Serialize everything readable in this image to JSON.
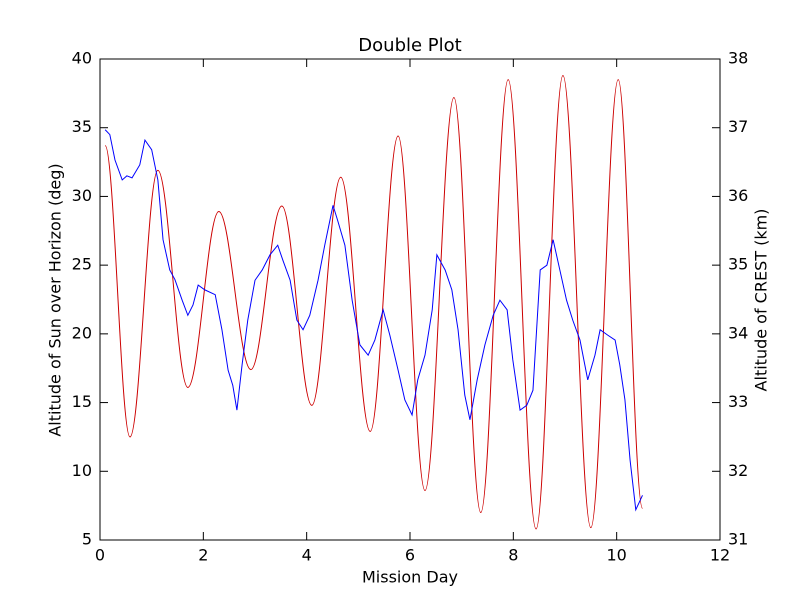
{
  "chart_data": {
    "type": "line",
    "title": "Double Plot",
    "xlabel": "Mission Day",
    "ylabel": "Altitude of Sun over Horizon (deg)",
    "y2label": "Altitude of CREST (km)",
    "xlim": [
      0,
      12
    ],
    "xticks": [
      0,
      2,
      4,
      6,
      8,
      10,
      12
    ],
    "ylim": [
      5,
      40
    ],
    "yticks": [
      5,
      10,
      15,
      20,
      25,
      30,
      35,
      40
    ],
    "y2lim": [
      31,
      38
    ],
    "y2ticks": [
      31,
      32,
      33,
      34,
      35,
      36,
      37,
      38
    ],
    "series": [
      {
        "color": "#cc0000",
        "smooth": true,
        "x": [
          0.1,
          0.58,
          1.12,
          1.7,
          2.3,
          2.92,
          3.52,
          4.1,
          4.66,
          5.23,
          5.77,
          6.29,
          6.85,
          7.37,
          7.9,
          8.44,
          8.96,
          9.5,
          10.03,
          10.5
        ],
        "values": [
          33.7,
          12.5,
          31.9,
          16.1,
          28.9,
          17.4,
          29.3,
          14.8,
          31.4,
          12.9,
          34.4,
          8.6,
          37.2,
          7.0,
          38.5,
          5.8,
          38.8,
          5.9,
          38.5,
          7.3
        ]
      },
      {
        "color": "#0000ff",
        "axis": "y2",
        "x": [
          0.1,
          0.19,
          0.29,
          0.43,
          0.52,
          0.62,
          0.77,
          0.87,
          1.0,
          1.12,
          1.22,
          1.35,
          1.45,
          1.59,
          1.7,
          1.8,
          1.9,
          2.03,
          2.23,
          2.36,
          2.48,
          2.57,
          2.65,
          2.75,
          2.86,
          3.0,
          3.14,
          3.29,
          3.44,
          3.54,
          3.68,
          3.81,
          3.93,
          4.06,
          4.22,
          4.35,
          4.51,
          4.6,
          4.74,
          4.88,
          5.03,
          5.19,
          5.32,
          5.48,
          5.61,
          5.77,
          5.9,
          6.04,
          6.15,
          6.29,
          6.43,
          6.52,
          6.68,
          6.81,
          6.93,
          7.06,
          7.16,
          7.3,
          7.45,
          7.61,
          7.74,
          7.88,
          7.99,
          8.13,
          8.26,
          8.38,
          8.52,
          8.65,
          8.77,
          8.9,
          9.03,
          9.15,
          9.29,
          9.44,
          9.58,
          9.68,
          9.83,
          9.97,
          10.06,
          10.16,
          10.26,
          10.37,
          10.5
        ],
        "values": [
          36.97,
          36.9,
          36.53,
          36.24,
          36.3,
          36.27,
          36.46,
          36.82,
          36.68,
          36.24,
          35.37,
          34.93,
          34.79,
          34.49,
          34.27,
          34.42,
          34.71,
          34.64,
          34.57,
          34.06,
          33.47,
          33.25,
          32.89,
          33.55,
          34.2,
          34.78,
          34.93,
          35.15,
          35.29,
          35.07,
          34.78,
          34.2,
          34.06,
          34.27,
          34.78,
          35.29,
          35.87,
          35.65,
          35.29,
          34.49,
          33.84,
          33.69,
          33.91,
          34.35,
          33.98,
          33.47,
          33.04,
          32.82,
          33.33,
          33.69,
          34.35,
          35.15,
          34.93,
          34.64,
          34.06,
          33.11,
          32.75,
          33.33,
          33.84,
          34.27,
          34.49,
          34.35,
          33.62,
          32.89,
          32.96,
          33.18,
          34.93,
          35.0,
          35.37,
          34.93,
          34.49,
          34.2,
          33.91,
          33.33,
          33.69,
          34.06,
          33.98,
          33.91,
          33.55,
          33.04,
          32.16,
          31.44,
          31.65
        ]
      }
    ]
  }
}
